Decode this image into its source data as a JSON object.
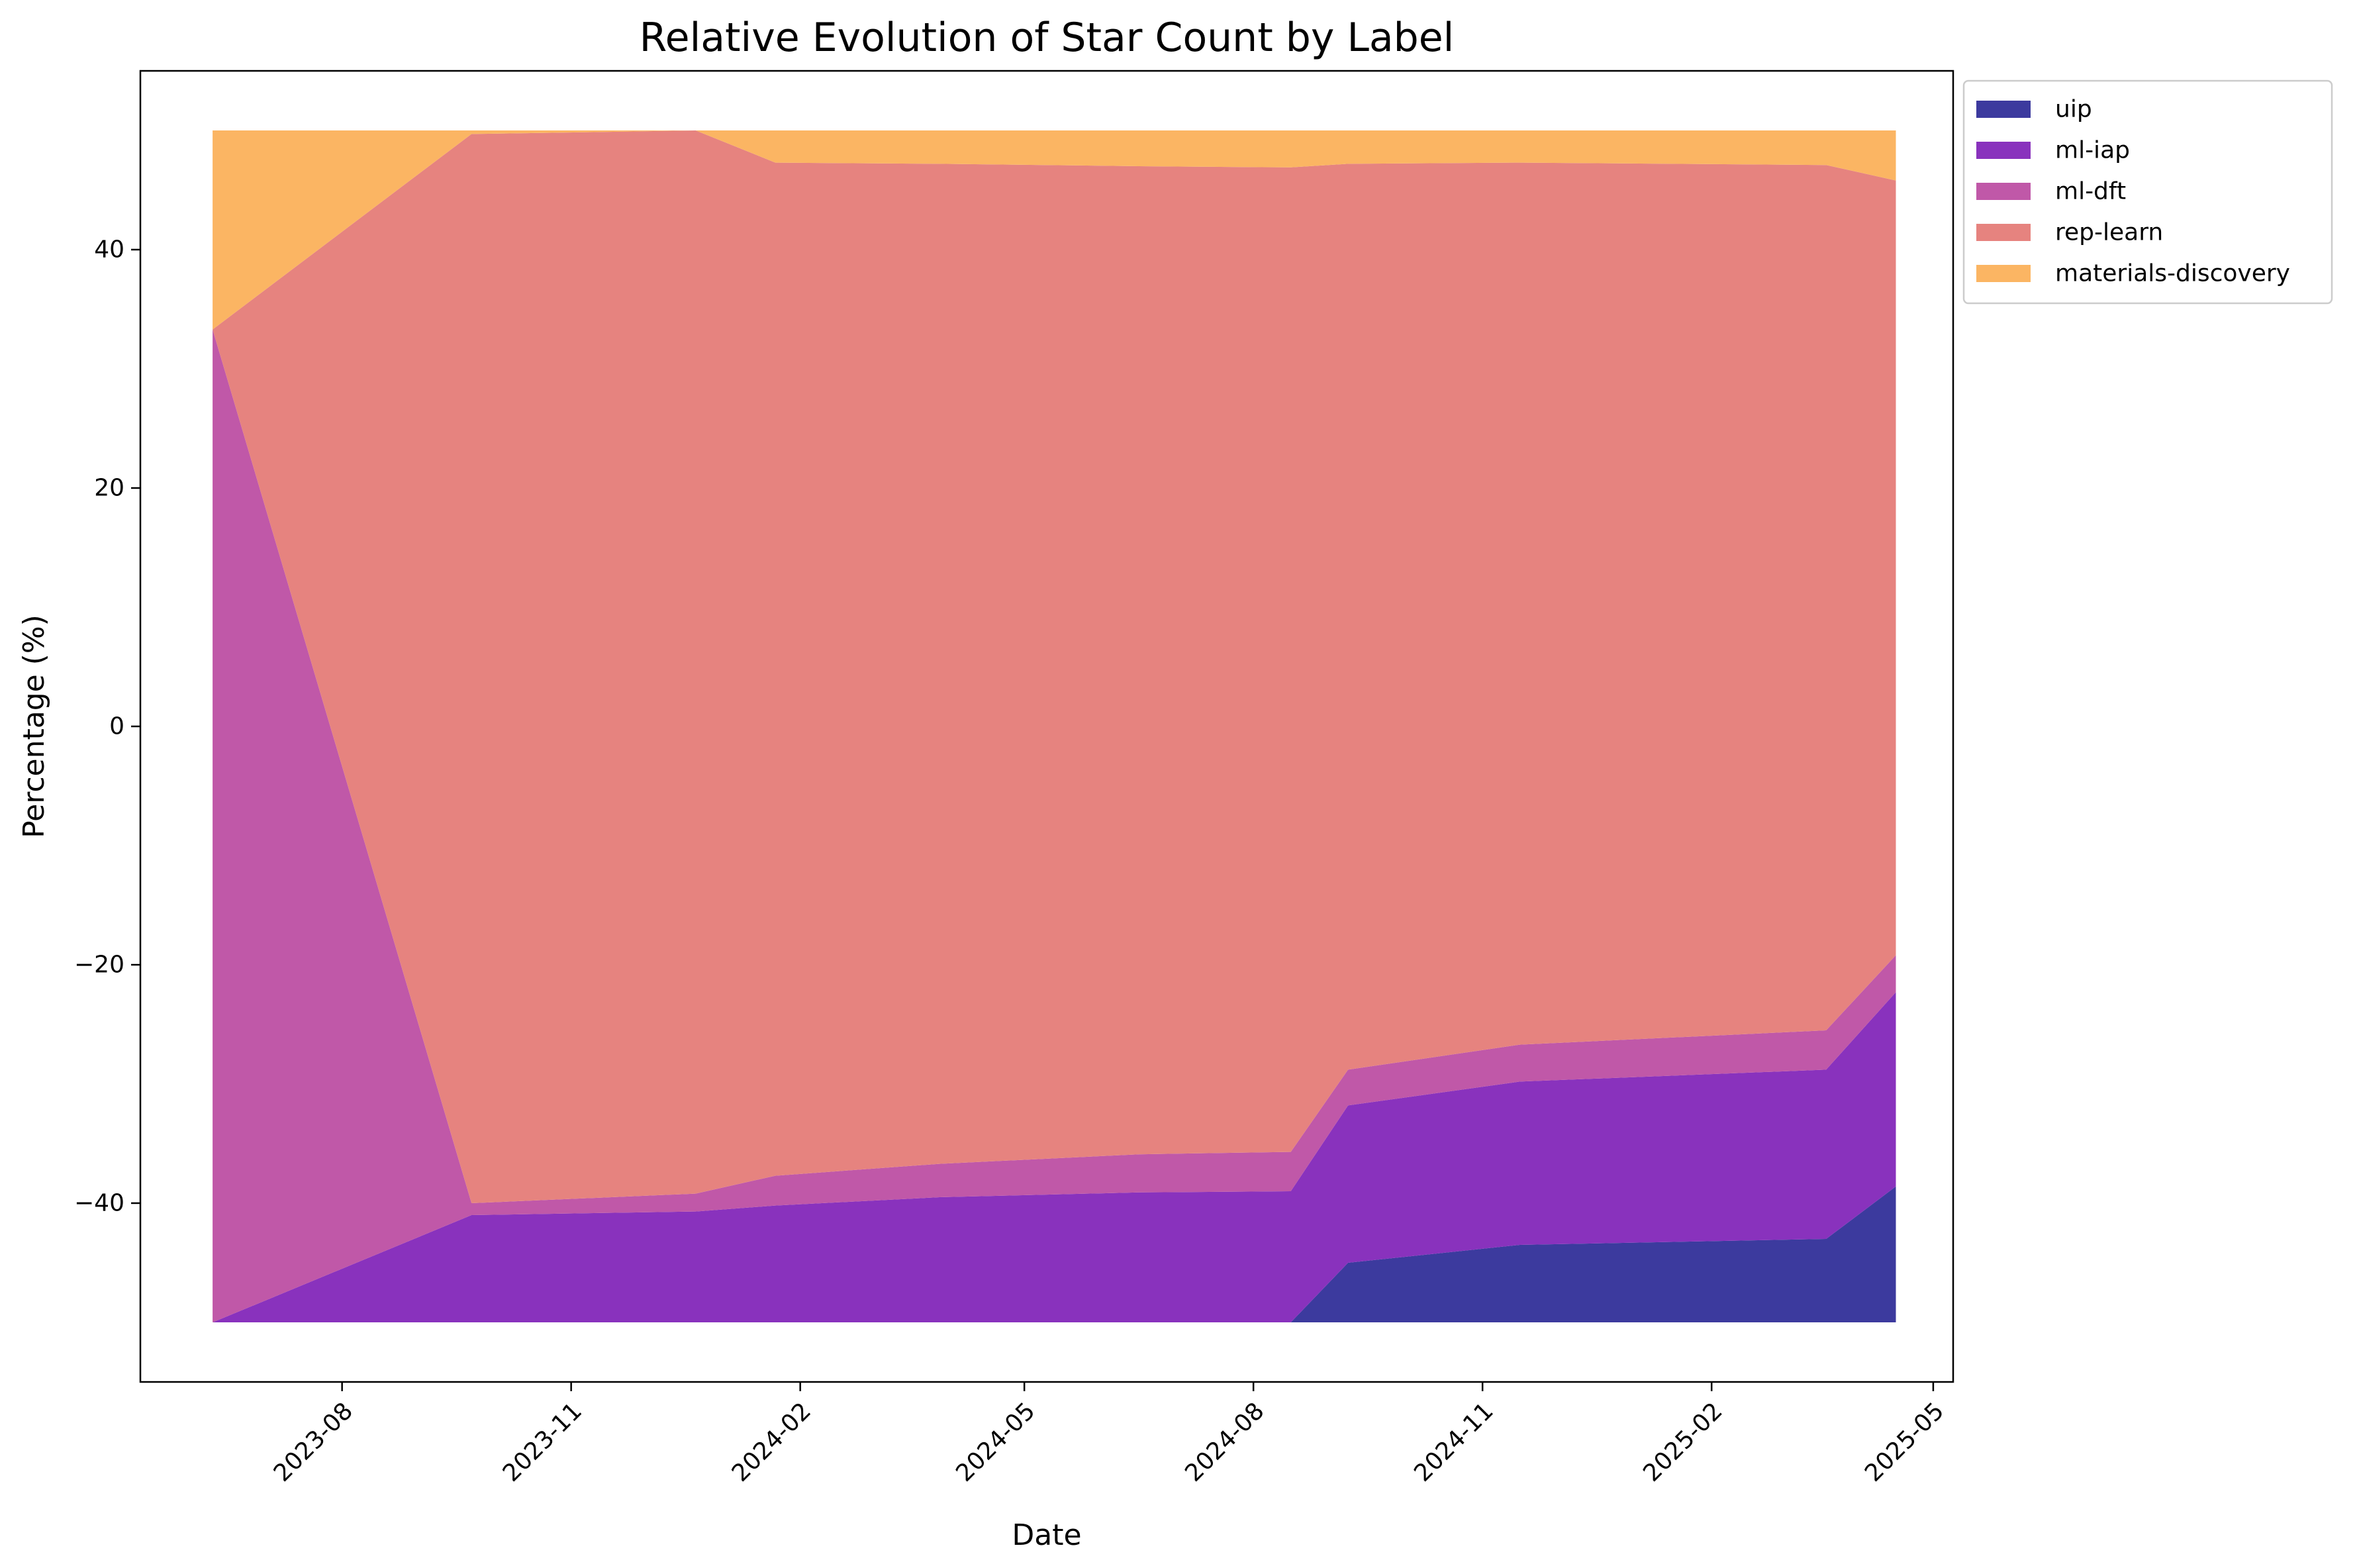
{
  "chart_data": {
    "type": "area",
    "stacking": "expand-centered",
    "title": "Relative Evolution of Star Count by Label",
    "xlabel": "Date",
    "ylabel": "Percentage (%)",
    "ylim": [
      -55,
      55
    ],
    "xlim": [
      "2023-05-12",
      "2025-05-09"
    ],
    "x_tick_labels": [
      "2023-08",
      "2023-11",
      "2024-02",
      "2024-05",
      "2024-08",
      "2024-11",
      "2025-02",
      "2025-05"
    ],
    "y_ticks": [
      -40,
      -20,
      0,
      20,
      40
    ],
    "y_tick_labels": [
      "−40",
      "−20",
      "0",
      "20",
      "40"
    ],
    "grid": false,
    "legend": {
      "placement": "outside upper-right"
    },
    "x": [
      "2023-06-10",
      "2023-09-22",
      "2023-12-21",
      "2024-01-22",
      "2024-03-28",
      "2024-06-16",
      "2024-08-16",
      "2024-09-08",
      "2024-11-16",
      "2025-03-19",
      "2025-04-16"
    ],
    "series": [
      {
        "name": "uip",
        "color": "#3c3a9e",
        "values": [
          0,
          0,
          0,
          0,
          0,
          0,
          0,
          5.0,
          6.5,
          7.0,
          11.4
        ]
      },
      {
        "name": "ml-iap",
        "color": "#8932bd",
        "values": [
          0,
          9.0,
          9.3,
          9.8,
          10.5,
          10.9,
          11.0,
          13.2,
          13.7,
          14.2,
          16.3
        ]
      },
      {
        "name": "ml-dft",
        "color": "#c058a8",
        "values": [
          83.3,
          1.0,
          1.5,
          2.5,
          2.8,
          3.2,
          3.3,
          3.0,
          3.1,
          3.3,
          3.1
        ]
      },
      {
        "name": "rep-learn",
        "color": "#e6837f",
        "values": [
          0,
          89.7,
          89.2,
          85.0,
          83.9,
          82.9,
          82.6,
          76.0,
          74.0,
          72.6,
          65.0
        ]
      },
      {
        "name": "materials-discovery",
        "color": "#fbb563",
        "values": [
          16.7,
          0.3,
          0,
          2.7,
          2.8,
          3.0,
          3.1,
          2.8,
          2.7,
          2.9,
          4.2
        ]
      }
    ]
  }
}
